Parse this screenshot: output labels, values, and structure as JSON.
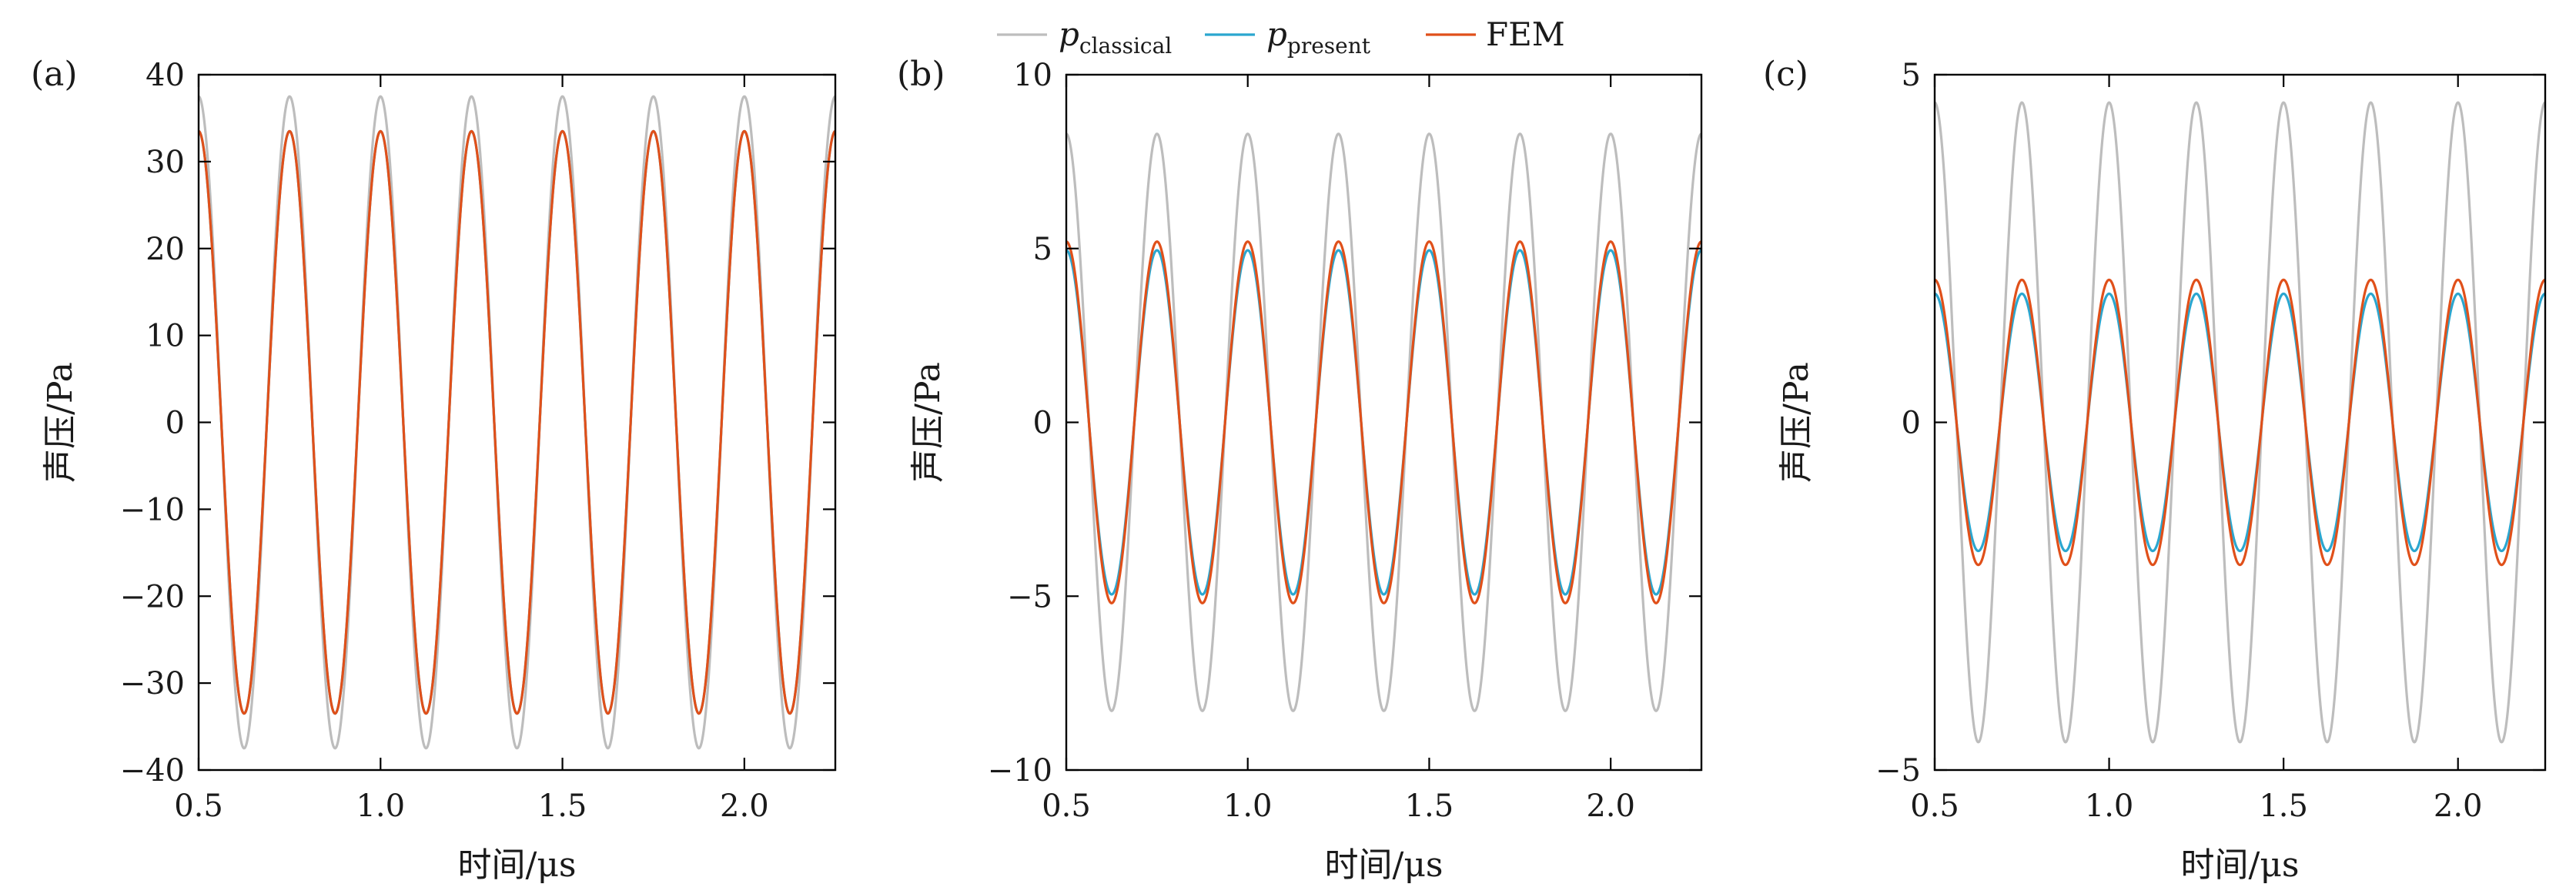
{
  "legend": {
    "entries": [
      {
        "symbol": "p",
        "subscript": "classical",
        "text": "",
        "color": "#bdbdbd"
      },
      {
        "symbol": "p",
        "subscript": "present",
        "text": "",
        "color": "#2ba6cf"
      },
      {
        "symbol": "",
        "subscript": "",
        "text": "FEM",
        "color": "#e0501a"
      }
    ]
  },
  "chart_data": [
    {
      "type": "line",
      "panel_label": "(a)",
      "xlabel": "时间/μs",
      "ylabel": "声压/Pa",
      "xlim": [
        0.5,
        2.25
      ],
      "ylim": [
        -40,
        40
      ],
      "x_ticks": [
        0.5,
        1.0,
        1.5,
        2.0
      ],
      "x_tick_labels": [
        "0.5",
        "1.0",
        "1.5",
        "2.0"
      ],
      "y_ticks": [
        -40,
        -30,
        -20,
        -10,
        0,
        10,
        20,
        30,
        40
      ],
      "y_tick_labels": [
        "−40",
        "−30",
        "−20",
        "−10",
        "0",
        "10",
        "20",
        "30",
        "40"
      ],
      "period_us": 0.25,
      "peak_time_us": 0.75,
      "series": [
        {
          "name": "p_classical",
          "amplitude": 37.5,
          "color": "#bdbdbd"
        },
        {
          "name": "p_present",
          "amplitude": 33.5,
          "color": "#2ba6cf"
        },
        {
          "name": "FEM",
          "amplitude": 33.5,
          "color": "#e0501a"
        }
      ]
    },
    {
      "type": "line",
      "panel_label": "(b)",
      "xlabel": "时间/μs",
      "ylabel": "声压/Pa",
      "xlim": [
        0.5,
        2.25
      ],
      "ylim": [
        -10,
        10
      ],
      "x_ticks": [
        0.5,
        1.0,
        1.5,
        2.0
      ],
      "x_tick_labels": [
        "0.5",
        "1.0",
        "1.5",
        "2.0"
      ],
      "y_ticks": [
        -10,
        -5,
        0,
        5,
        10
      ],
      "y_tick_labels": [
        "−10",
        "−5",
        "0",
        "5",
        "10"
      ],
      "period_us": 0.25,
      "peak_time_us": 0.75,
      "series": [
        {
          "name": "p_classical",
          "amplitude": 8.3,
          "color": "#bdbdbd"
        },
        {
          "name": "p_present",
          "amplitude": 4.95,
          "color": "#2ba6cf"
        },
        {
          "name": "FEM",
          "amplitude": 5.2,
          "color": "#e0501a"
        }
      ]
    },
    {
      "type": "line",
      "panel_label": "(c)",
      "xlabel": "时间/μs",
      "ylabel": "声压/Pa",
      "xlim": [
        0.5,
        2.25
      ],
      "ylim": [
        -5,
        5
      ],
      "x_ticks": [
        0.5,
        1.0,
        1.5,
        2.0
      ],
      "x_tick_labels": [
        "0.5",
        "1.0",
        "1.5",
        "2.0"
      ],
      "y_ticks": [
        -5,
        0,
        5
      ],
      "y_tick_labels": [
        "−5",
        "0",
        "5"
      ],
      "period_us": 0.25,
      "peak_time_us": 0.75,
      "series": [
        {
          "name": "p_classical",
          "amplitude": 4.6,
          "color": "#bdbdbd"
        },
        {
          "name": "p_present",
          "amplitude": 1.85,
          "color": "#2ba6cf"
        },
        {
          "name": "FEM",
          "amplitude": 2.05,
          "color": "#e0501a"
        }
      ]
    }
  ]
}
